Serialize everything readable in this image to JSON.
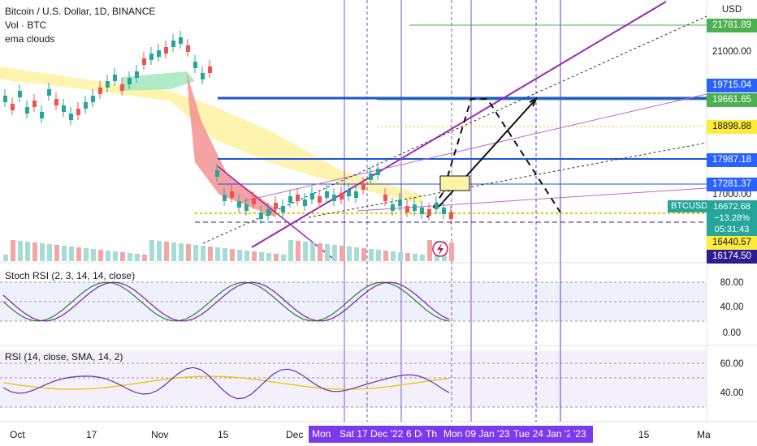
{
  "legend": {
    "symbol": "Bitcoin / U.S. Dollar, 1D, BINANCE",
    "volume": "Vol · BTC",
    "indicator": "ema clouds"
  },
  "panes": {
    "stoch_rsi": "Stoch RSI (2, 3, 14, 14, close)",
    "rsi": "RSI (14, close, SMA, 14, 2)"
  },
  "price_axis": {
    "currency": "USD",
    "labels": [
      "21000.00",
      "17000.00"
    ],
    "tags": [
      {
        "value": "21781.89",
        "bg": "#4caf50",
        "fg": "#ffffff"
      },
      {
        "value": "19715.04",
        "bg": "#2962ff",
        "fg": "#ffffff"
      },
      {
        "value": "19661.65",
        "bg": "#4caf50",
        "fg": "#ffffff"
      },
      {
        "value": "18898.88",
        "bg": "#ffeb3b",
        "fg": "#131722"
      },
      {
        "value": "17987.18",
        "bg": "#2962ff",
        "fg": "#ffffff"
      },
      {
        "value": "17281.37",
        "bg": "#2962ff",
        "fg": "#ffffff"
      },
      {
        "value": "16440.57",
        "bg": "#ffeb3b",
        "fg": "#131722"
      },
      {
        "value": "16174.50",
        "bg": "#311b92",
        "fg": "#ffffff"
      }
    ]
  },
  "last_price": {
    "symbol": "BTCUSD",
    "price": "16672.68",
    "change": "−13.28%",
    "countdown": "05:31:43"
  },
  "stoch_axis": [
    "80.00",
    "40.00",
    "0.00"
  ],
  "rsi_axis": [
    "60.00",
    "40.00"
  ],
  "time_axis": [
    "Oct",
    "17",
    "Nov",
    "15",
    "Dec",
    "Mon",
    "Sat 17 Dec '22",
    "6 De",
    "Th",
    "Mon 09 Jan '23",
    "Tue 24 Jan '23",
    "'23",
    "15",
    "Ma"
  ],
  "colors": {
    "up": "#26a69a",
    "down": "#ef5350",
    "purple": "#9c27b0",
    "blue": "#1e53e5",
    "yellow": "#ffeb3b",
    "vline": "#5b3cc4"
  },
  "icons": {
    "alert": "lightning-icon"
  }
}
